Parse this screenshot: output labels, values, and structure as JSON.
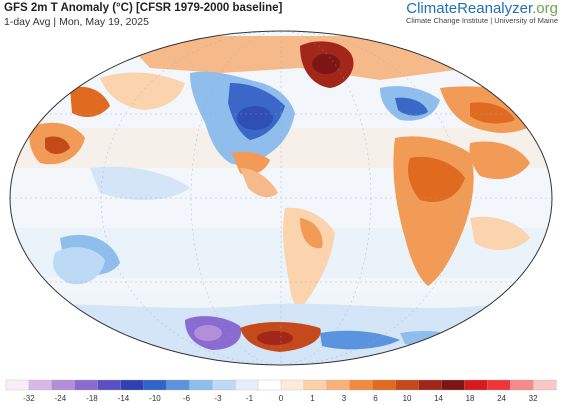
{
  "header": {
    "title": "GFS 2m T Anomaly (°C) [CFSR 1979-2000 baseline]",
    "subtitle": "1-day Avg | Mon, May 19, 2025"
  },
  "brand": {
    "name_main": "ClimateReanalyzer",
    "name_suffix": ".org",
    "tagline": "Climate Change Institute | University of Maine"
  },
  "legend": {
    "ticks": [
      "-32",
      "-24",
      "-18",
      "-14",
      "-10",
      "-6",
      "-3",
      "-1",
      "0",
      "1",
      "3",
      "6",
      "10",
      "14",
      "18",
      "24",
      "32"
    ],
    "colors": [
      "#f7eef7",
      "#d9b8e8",
      "#b48fd9",
      "#8a6bd1",
      "#5a50c4",
      "#2f3fb5",
      "#2f64c9",
      "#5b94de",
      "#8fbdec",
      "#bcd9f5",
      "#e3effb",
      "#ffffff",
      "#fdebd9",
      "#fcd1a9",
      "#f9b178",
      "#f28a3e",
      "#e06a1f",
      "#c4491b",
      "#a3261a",
      "#7d1515",
      "#d81a1a",
      "#f2343a",
      "#f58a8a",
      "#f9c7c7"
    ]
  },
  "map": {
    "projection_note": "",
    "colors": {
      "ocean_neutral": "#f4f7fb",
      "warm_light": "#fbd3ad",
      "warm": "#f19b56",
      "warm_strong": "#e06a1f",
      "hot": "#a3261a",
      "cool_light": "#d3e5f7",
      "cool": "#8fbdec",
      "cold": "#3b67c9",
      "very_cold": "#8a6bd1"
    }
  }
}
